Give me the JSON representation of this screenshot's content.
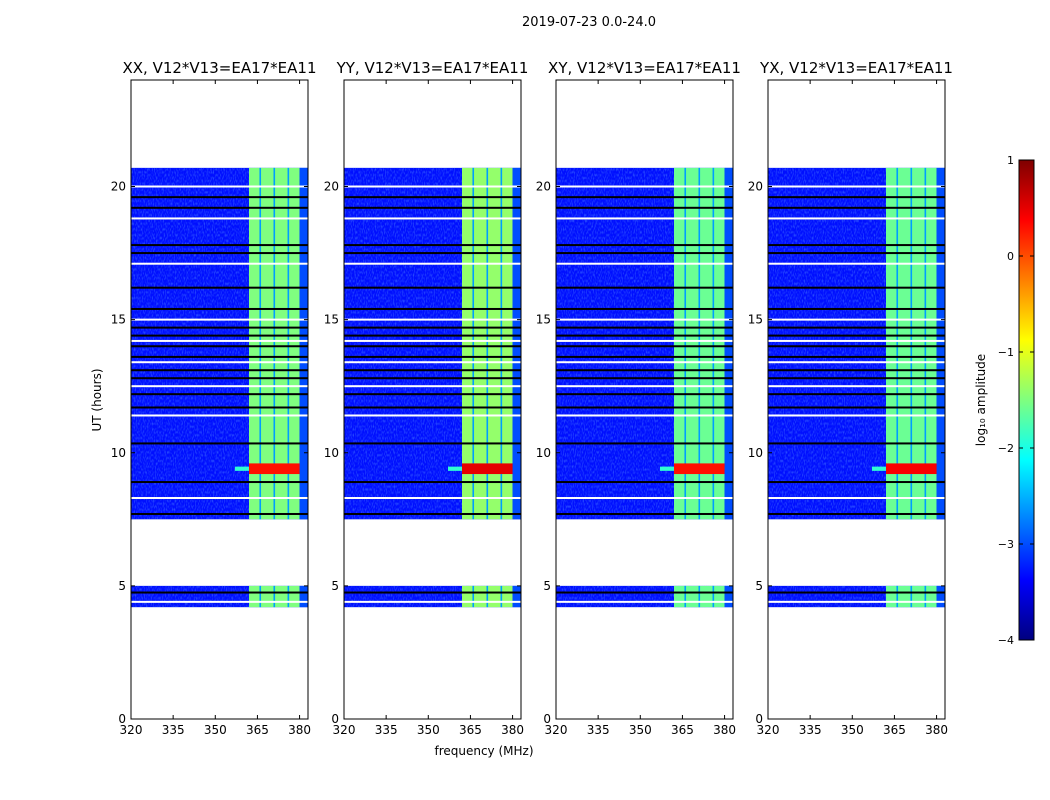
{
  "chart_data": {
    "type": "heatmap",
    "suptitle": "2019-07-23 0.0-24.0",
    "xlabel": "frequency (MHz)",
    "ylabel": "UT (hours)",
    "xlim": [
      320,
      383
    ],
    "ylim": [
      0,
      24
    ],
    "xticks": [
      320,
      335,
      350,
      365,
      380
    ],
    "yticks": [
      0,
      5,
      10,
      15,
      20
    ],
    "colorbar": {
      "label": "log₁₀ amplitude",
      "range": [
        -4,
        1
      ],
      "ticks": [
        "1",
        "0",
        "−1",
        "−2",
        "−3",
        "−4"
      ],
      "tick_values": [
        1,
        0,
        -1,
        -2,
        -3,
        -4
      ],
      "colormap": "jet"
    },
    "data_time_ranges_hours": [
      [
        4.2,
        5.0
      ],
      [
        7.5,
        20.7
      ]
    ],
    "gap_rows_hours": [
      4.4,
      4.75,
      7.7,
      8.3,
      8.9,
      10.35,
      11.4,
      11.7,
      12.2,
      12.5,
      12.8,
      13.1,
      13.4,
      13.6,
      14.0,
      14.2,
      14.4,
      14.7,
      15.0,
      15.4,
      16.2,
      17.1,
      17.5,
      17.8,
      18.8,
      19.2,
      19.6,
      20.0
    ],
    "bright_band_mhz": [
      362,
      380
    ],
    "bright_subband_gaps_mhz": [
      366,
      371,
      376
    ],
    "rfi_burst_hours": [
      9.2,
      9.6
    ],
    "panels": [
      {
        "title": "XX, V12*V13=EA17*EA11",
        "band_level": -1.5,
        "burst_level": 0.3
      },
      {
        "title": "YY, V12*V13=EA17*EA11",
        "band_level": -1.4,
        "burst_level": 0.5
      },
      {
        "title": "XY, V12*V13=EA17*EA11",
        "band_level": -1.6,
        "burst_level": 0.3
      },
      {
        "title": "YX, V12*V13=EA17*EA11",
        "band_level": -1.6,
        "burst_level": 0.4
      }
    ]
  }
}
